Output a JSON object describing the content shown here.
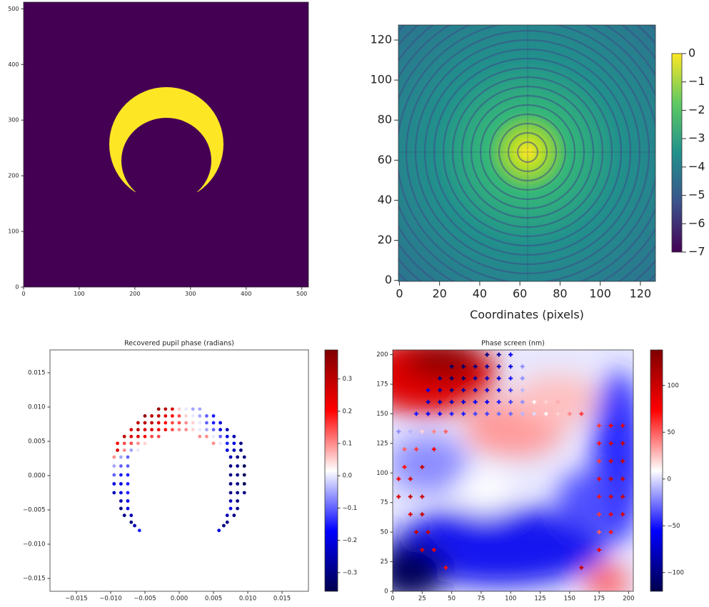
{
  "chart_data": [
    {
      "type": "image",
      "xlim": [
        0,
        512
      ],
      "ylim": [
        0,
        512
      ],
      "xticks": [
        0,
        100,
        200,
        300,
        400,
        500
      ],
      "yticks": [
        0,
        100,
        200,
        300,
        400,
        500
      ]
    },
    {
      "type": "image",
      "xlim": [
        -0.5,
        127.5
      ],
      "ylim": [
        -0.5,
        127.5
      ],
      "xticks": [
        0,
        20,
        40,
        60,
        80,
        100,
        120
      ],
      "yticks": [
        0,
        20,
        40,
        60,
        80,
        100,
        120
      ],
      "xlabel": "Coordinates (pixels)",
      "colormap": "viridis",
      "clim": [
        -7,
        0
      ],
      "cticks": [
        0,
        {
          "value": -1,
          "label": "−1"
        },
        {
          "value": -2,
          "label": "−2"
        },
        {
          "value": -3,
          "label": "−3"
        },
        {
          "value": -4,
          "label": "−4"
        },
        {
          "value": -5,
          "label": "−5"
        },
        {
          "value": -6,
          "label": "−6"
        },
        {
          "value": -7,
          "label": "−7"
        }
      ]
    },
    {
      "type": "scatter",
      "title": "Recovered pupil phase (radians)",
      "colormap": "seismic",
      "xlim": [
        -0.01885,
        0.01885
      ],
      "ylim": [
        -0.016875,
        0.01833
      ],
      "clim": [
        -0.358,
        0.39
      ],
      "xticks": [
        {
          "value": -0.015,
          "label": "−0.015"
        },
        {
          "value": -0.01,
          "label": "−0.010"
        },
        {
          "value": -0.005,
          "label": "−0.005"
        },
        {
          "value": 0,
          "label": "0.000"
        },
        {
          "value": 0.005,
          "label": "0.005"
        },
        {
          "value": 0.01,
          "label": "0.010"
        },
        {
          "value": 0.015,
          "label": "0.015"
        }
      ],
      "yticks": [
        {
          "value": -0.015,
          "label": "−0.015"
        },
        {
          "value": -0.01,
          "label": "−0.010"
        },
        {
          "value": -0.005,
          "label": "−0.005"
        },
        {
          "value": 0,
          "label": "0.000"
        },
        {
          "value": 0.005,
          "label": "0.005"
        },
        {
          "value": 0.01,
          "label": "0.010"
        },
        {
          "value": 0.015,
          "label": "0.015"
        }
      ],
      "cticks": [
        {
          "value": 0.3,
          "label": "0.3"
        },
        {
          "value": 0.2,
          "label": "0.2"
        },
        {
          "value": 0.1,
          "label": "0.1"
        },
        {
          "value": 0,
          "label": "0.0"
        },
        {
          "value": -0.1,
          "label": "−0.1"
        },
        {
          "value": -0.2,
          "label": "−0.2"
        },
        {
          "value": -0.3,
          "label": "−0.3"
        }
      ],
      "points": {
        "x": [
          -0.003,
          -0.002,
          -0.001,
          0,
          0.001,
          0.002,
          0.003,
          -0.005,
          -0.004,
          -0.003,
          -0.002,
          -0.001,
          0,
          0.001,
          0.002,
          0.003,
          0.004,
          0.005,
          -0.006,
          -0.005,
          -0.004,
          -0.003,
          -0.002,
          -0.001,
          0,
          0.001,
          0.002,
          0.003,
          0.004,
          0.005,
          0.006,
          -0.007,
          -0.006,
          -0.005,
          -0.004,
          -0.003,
          -0.002,
          -0.001,
          0,
          0.001,
          0.002,
          0.003,
          0.004,
          0.005,
          0.006,
          0.007,
          -0.008,
          -0.007,
          -0.006,
          -0.005,
          -0.004,
          -0.003,
          0.003,
          0.004,
          0.005,
          0.006,
          0.007,
          0.008,
          -0.009,
          -0.008,
          -0.007,
          -0.006,
          -0.005,
          0.005,
          0.006,
          0.007,
          0.008,
          0.009,
          -0.009,
          -0.008,
          -0.007,
          -0.006,
          0.007,
          0.008,
          0.009,
          -0.0095,
          -0.0085,
          -0.0075,
          0.0075,
          0.0085,
          0.0095,
          -0.0095,
          -0.0085,
          -0.0075,
          0.0075,
          0.0085,
          0.0095,
          -0.0095,
          -0.0085,
          -0.0075,
          0.0075,
          0.0085,
          0.0095,
          -0.0095,
          -0.0085,
          -0.0075,
          0.0075,
          0.0085,
          0.0095,
          -0.0095,
          -0.0085,
          -0.0075,
          0.0075,
          0.0085,
          0.0095,
          -0.0085,
          -0.0075,
          0.0075,
          0.0085,
          -0.0085,
          -0.0075,
          0.0075,
          0.0085,
          -0.008,
          -0.007,
          0.007,
          0.008,
          -0.007,
          0.007,
          -0.0065,
          0.0065,
          -0.0058,
          0.0058
        ],
        "y": [
          0.0097,
          0.0097,
          0.0097,
          0.0097,
          0.0097,
          0.0097,
          0.0097,
          0.0087,
          0.0087,
          0.0087,
          0.0087,
          0.0087,
          0.0087,
          0.0087,
          0.0087,
          0.0087,
          0.0087,
          0.0087,
          0.0077,
          0.0077,
          0.0077,
          0.0077,
          0.0077,
          0.0077,
          0.0077,
          0.0077,
          0.0077,
          0.0077,
          0.0077,
          0.0077,
          0.0077,
          0.0067,
          0.0067,
          0.0067,
          0.0067,
          0.0067,
          0.0067,
          0.0067,
          0.0067,
          0.0067,
          0.0067,
          0.0067,
          0.0067,
          0.0067,
          0.0067,
          0.0067,
          0.0057,
          0.0057,
          0.0057,
          0.0057,
          0.0057,
          0.0057,
          0.0057,
          0.0057,
          0.0057,
          0.0057,
          0.0057,
          0.0057,
          0.0047,
          0.0047,
          0.0047,
          0.0047,
          0.0047,
          0.0047,
          0.0047,
          0.0047,
          0.0047,
          0.0047,
          0.0037,
          0.0037,
          0.0037,
          0.0037,
          0.0037,
          0.0037,
          0.0037,
          0.0027,
          0.0027,
          0.0027,
          0.0027,
          0.0027,
          0.0027,
          0.0014,
          0.0014,
          0.0014,
          0.0014,
          0.0014,
          0.0014,
          0.0001,
          0.0001,
          0.0001,
          0.0001,
          0.0001,
          0.0001,
          -0.0012,
          -0.0012,
          -0.0012,
          -0.0012,
          -0.0012,
          -0.0012,
          -0.0025,
          -0.0025,
          -0.0025,
          -0.0025,
          -0.0025,
          -0.0025,
          -0.0037,
          -0.0037,
          -0.0037,
          -0.0037,
          -0.0048,
          -0.0048,
          -0.0048,
          -0.0048,
          -0.0058,
          -0.0058,
          -0.0058,
          -0.0058,
          -0.0068,
          -0.0068,
          -0.0073,
          -0.0073,
          -0.008,
          -0.008
        ],
        "values": [
          0.35,
          0.3,
          0.25,
          0.05,
          0,
          -0.05,
          -0.05,
          0.35,
          0.3,
          0.3,
          0.25,
          0.2,
          0.15,
          0.05,
          0,
          -0.05,
          -0.1,
          -0.15,
          0.3,
          0.3,
          0.3,
          0.25,
          0.2,
          0.15,
          0.15,
          0.1,
          0.05,
          0,
          -0.1,
          -0.15,
          -0.2,
          0.25,
          0.3,
          0.25,
          0.25,
          0.2,
          0.2,
          0.15,
          0.1,
          0.1,
          0.05,
          0,
          -0.05,
          -0.1,
          -0.2,
          -0.25,
          0.3,
          0.25,
          0.25,
          0.2,
          0.15,
          0.15,
          0.1,
          0.1,
          0,
          -0.1,
          -0.2,
          -0.25,
          0.2,
          0.15,
          0.15,
          0.1,
          0.05,
          0.1,
          0,
          -0.15,
          -0.2,
          -0.3,
          0.25,
          0.1,
          -0.05,
          0,
          -0.2,
          -0.25,
          -0.3,
          0.1,
          -0.05,
          -0.1,
          -0.25,
          -0.3,
          -0.3,
          -0.05,
          -0.1,
          -0.1,
          -0.3,
          -0.3,
          -0.35,
          -0.1,
          -0.15,
          -0.15,
          -0.3,
          -0.3,
          -0.35,
          -0.2,
          -0.2,
          -0.15,
          -0.3,
          -0.3,
          -0.35,
          -0.25,
          -0.2,
          -0.15,
          -0.3,
          -0.3,
          -0.3,
          -0.25,
          -0.2,
          -0.25,
          -0.3,
          -0.3,
          -0.2,
          -0.2,
          -0.3,
          -0.3,
          -0.25,
          -0.25,
          -0.3,
          -0.3,
          -0.3,
          -0.25,
          -0.3,
          -0.15,
          -0.2
        ]
      }
    },
    {
      "type": "heatmap",
      "title": "Phase screen (nm)",
      "colormap": "seismic",
      "xlim": [
        0,
        204
      ],
      "ylim": [
        0,
        204
      ],
      "clim": [
        -120,
        138
      ],
      "xticks": [
        0,
        25,
        50,
        75,
        100,
        125,
        150,
        175,
        200
      ],
      "yticks": [
        0,
        25,
        50,
        75,
        100,
        125,
        150,
        175,
        200
      ],
      "cticks": [
        100,
        50,
        0,
        {
          "value": -50,
          "label": "−50"
        },
        {
          "value": -100,
          "label": "−100"
        }
      ],
      "points": {
        "x": [
          80,
          90,
          100,
          50,
          60,
          70,
          80,
          90,
          100,
          110,
          40,
          50,
          60,
          70,
          80,
          90,
          100,
          110,
          30,
          40,
          50,
          60,
          70,
          80,
          90,
          100,
          110,
          30,
          40,
          50,
          60,
          70,
          80,
          90,
          100,
          110,
          120,
          130,
          140,
          20,
          30,
          40,
          50,
          60,
          70,
          80,
          90,
          100,
          110,
          120,
          130,
          140,
          150,
          160,
          5,
          15,
          25,
          35,
          45,
          10,
          20,
          35,
          10,
          25,
          5,
          15,
          5,
          15,
          25,
          15,
          25,
          20,
          30,
          25,
          35,
          45,
          175,
          185,
          195,
          175,
          185,
          195,
          175,
          185,
          195,
          175,
          185,
          195,
          175,
          185,
          195,
          175,
          185,
          195,
          175,
          185,
          175,
          160
        ],
        "y": [
          200,
          200,
          200,
          190,
          190,
          190,
          190,
          190,
          190,
          190,
          180,
          180,
          180,
          180,
          180,
          180,
          180,
          180,
          170,
          170,
          170,
          170,
          170,
          170,
          170,
          170,
          170,
          160,
          160,
          160,
          160,
          160,
          160,
          160,
          160,
          160,
          160,
          160,
          160,
          150,
          150,
          150,
          150,
          150,
          150,
          150,
          150,
          150,
          150,
          150,
          150,
          150,
          150,
          150,
          135,
          135,
          135,
          135,
          135,
          120,
          120,
          120,
          105,
          105,
          95,
          95,
          80,
          80,
          80,
          65,
          65,
          50,
          50,
          35,
          35,
          20,
          140,
          140,
          140,
          125,
          125,
          125,
          110,
          110,
          110,
          95,
          95,
          95,
          80,
          80,
          80,
          65,
          65,
          65,
          50,
          50,
          35,
          20
        ],
        "values": [
          -100,
          -90,
          -60,
          -110,
          -110,
          -100,
          -90,
          -80,
          -60,
          -20,
          -100,
          -110,
          -110,
          -90,
          -80,
          -70,
          -50,
          -20,
          -60,
          -90,
          -100,
          -90,
          -80,
          -70,
          -60,
          -40,
          -10,
          -70,
          -80,
          -80,
          -70,
          -60,
          -60,
          -50,
          -40,
          -20,
          10,
          20,
          30,
          -50,
          -60,
          -60,
          -50,
          -50,
          -40,
          -40,
          -30,
          -30,
          -10,
          0,
          10,
          20,
          40,
          60,
          -20,
          -10,
          20,
          40,
          50,
          50,
          60,
          80,
          70,
          100,
          80,
          90,
          90,
          100,
          100,
          90,
          100,
          100,
          100,
          90,
          80,
          70,
          60,
          80,
          90,
          70,
          90,
          100,
          60,
          90,
          100,
          80,
          100,
          100,
          70,
          90,
          100,
          60,
          80,
          90,
          50,
          70,
          80,
          100
        ]
      }
    }
  ]
}
